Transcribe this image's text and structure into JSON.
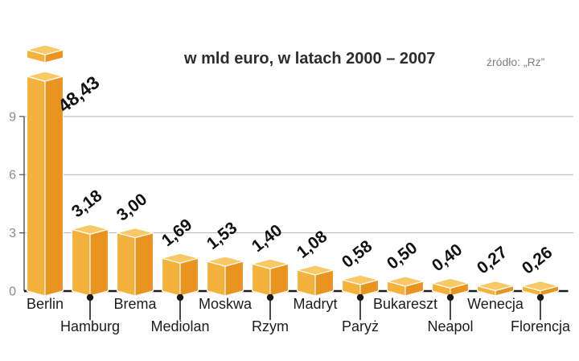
{
  "title": "w mld euro, w latach 2000 – 2007",
  "source": "źródło: „Rz”",
  "chart_data": {
    "type": "bar",
    "style": "3d-bars",
    "title": "w mld euro, w latach 2000 – 2007",
    "unit": "mld euro",
    "categories": [
      "Berlin",
      "Hamburg",
      "Brema",
      "Mediolan",
      "Moskwa",
      "Rzym",
      "Madryt",
      "Paryż",
      "Bukareszt",
      "Neapol",
      "Wenecja",
      "Florencja"
    ],
    "values": [
      48.43,
      3.18,
      3.0,
      1.69,
      1.53,
      1.4,
      1.08,
      0.58,
      0.5,
      0.4,
      0.27,
      0.26
    ],
    "value_labels": [
      "48,43",
      "3,18",
      "3,00",
      "1,69",
      "1,53",
      "1,40",
      "1,08",
      "0,58",
      "0,50",
      "0,40",
      "0,27",
      "0,26"
    ],
    "yticks": [
      0,
      3,
      6,
      9
    ],
    "ylim": [
      0,
      10
    ],
    "grid": true,
    "broken_bars": [
      "Berlin"
    ],
    "legend": "none",
    "xlabel": "",
    "ylabel": ""
  },
  "colors": {
    "bar_front": "#F4B13C",
    "bar_side": "#E8941F",
    "bar_top": "#F8C964",
    "edge": "#ffffff",
    "grid": "#b4b4b4",
    "axis": "#4f4f4f",
    "baseline": "#1a1a1a",
    "tick_text": "#8c8c8c",
    "category_text": "#1c1c1c",
    "value_text": "#111111",
    "title_text": "#2d2d2d",
    "source_text": "#7f7f7f"
  }
}
